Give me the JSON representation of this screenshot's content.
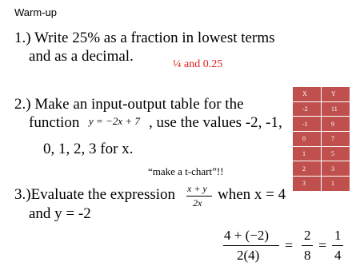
{
  "header": {
    "title": "Warm-up"
  },
  "problems": [
    {
      "lines": [
        "1.)  Write 25% as a fraction in lowest terms",
        "and as a decimal."
      ],
      "answer": "¼  and 0.25"
    },
    {
      "lines": [
        "2.)  Make an input-output table for the",
        "function",
        ", use the values -2, -1,",
        "0, 1, 2, 3 for x."
      ],
      "equation": "y = −2x + 7",
      "note": "“make a t-chart”!!"
    },
    {
      "lines": [
        "3.)Evaluate the expression",
        "when x = 4",
        "and y = -2"
      ],
      "expression": {
        "numerator": "x + y",
        "denominator": "2x"
      },
      "solution": [
        {
          "numerator": "4 + (−2)",
          "denominator": "2(4)"
        },
        "=",
        {
          "numerator": "2",
          "denominator": "8"
        },
        "=",
        {
          "numerator": "1",
          "denominator": "4"
        }
      ]
    }
  ],
  "table": {
    "header": [
      "X",
      "Y"
    ],
    "rows": [
      [
        "-2",
        "11"
      ],
      [
        "-1",
        "9"
      ],
      [
        "0",
        "7"
      ],
      [
        "1",
        "5"
      ],
      [
        "2",
        "3"
      ],
      [
        "3",
        "1"
      ]
    ]
  }
}
